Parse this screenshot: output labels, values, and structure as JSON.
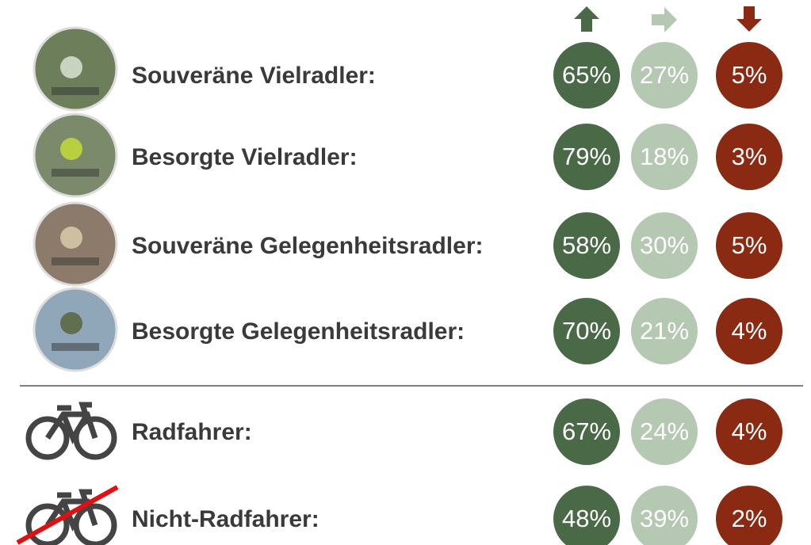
{
  "rows": [
    {
      "label": "Souveräne Vielradler:",
      "cells": [
        "65%",
        "27%",
        "5%"
      ]
    },
    {
      "label": "Besorgte Vielradler:",
      "cells": [
        "79%",
        "18%",
        "3%"
      ]
    },
    {
      "label": "Souveräne Gelegenheitsradler:",
      "cells": [
        "58%",
        "30%",
        "5%"
      ]
    },
    {
      "label": "Besorgte Gelegenheitsradler:",
      "cells": [
        "70%",
        "21%",
        "4%"
      ]
    },
    {
      "label": "Radfahrer:",
      "cells": [
        "67%",
        "24%",
        "4%"
      ]
    },
    {
      "label": "Nicht-Radfahrer:",
      "cells": [
        "48%",
        "39%",
        "2%"
      ]
    }
  ]
}
